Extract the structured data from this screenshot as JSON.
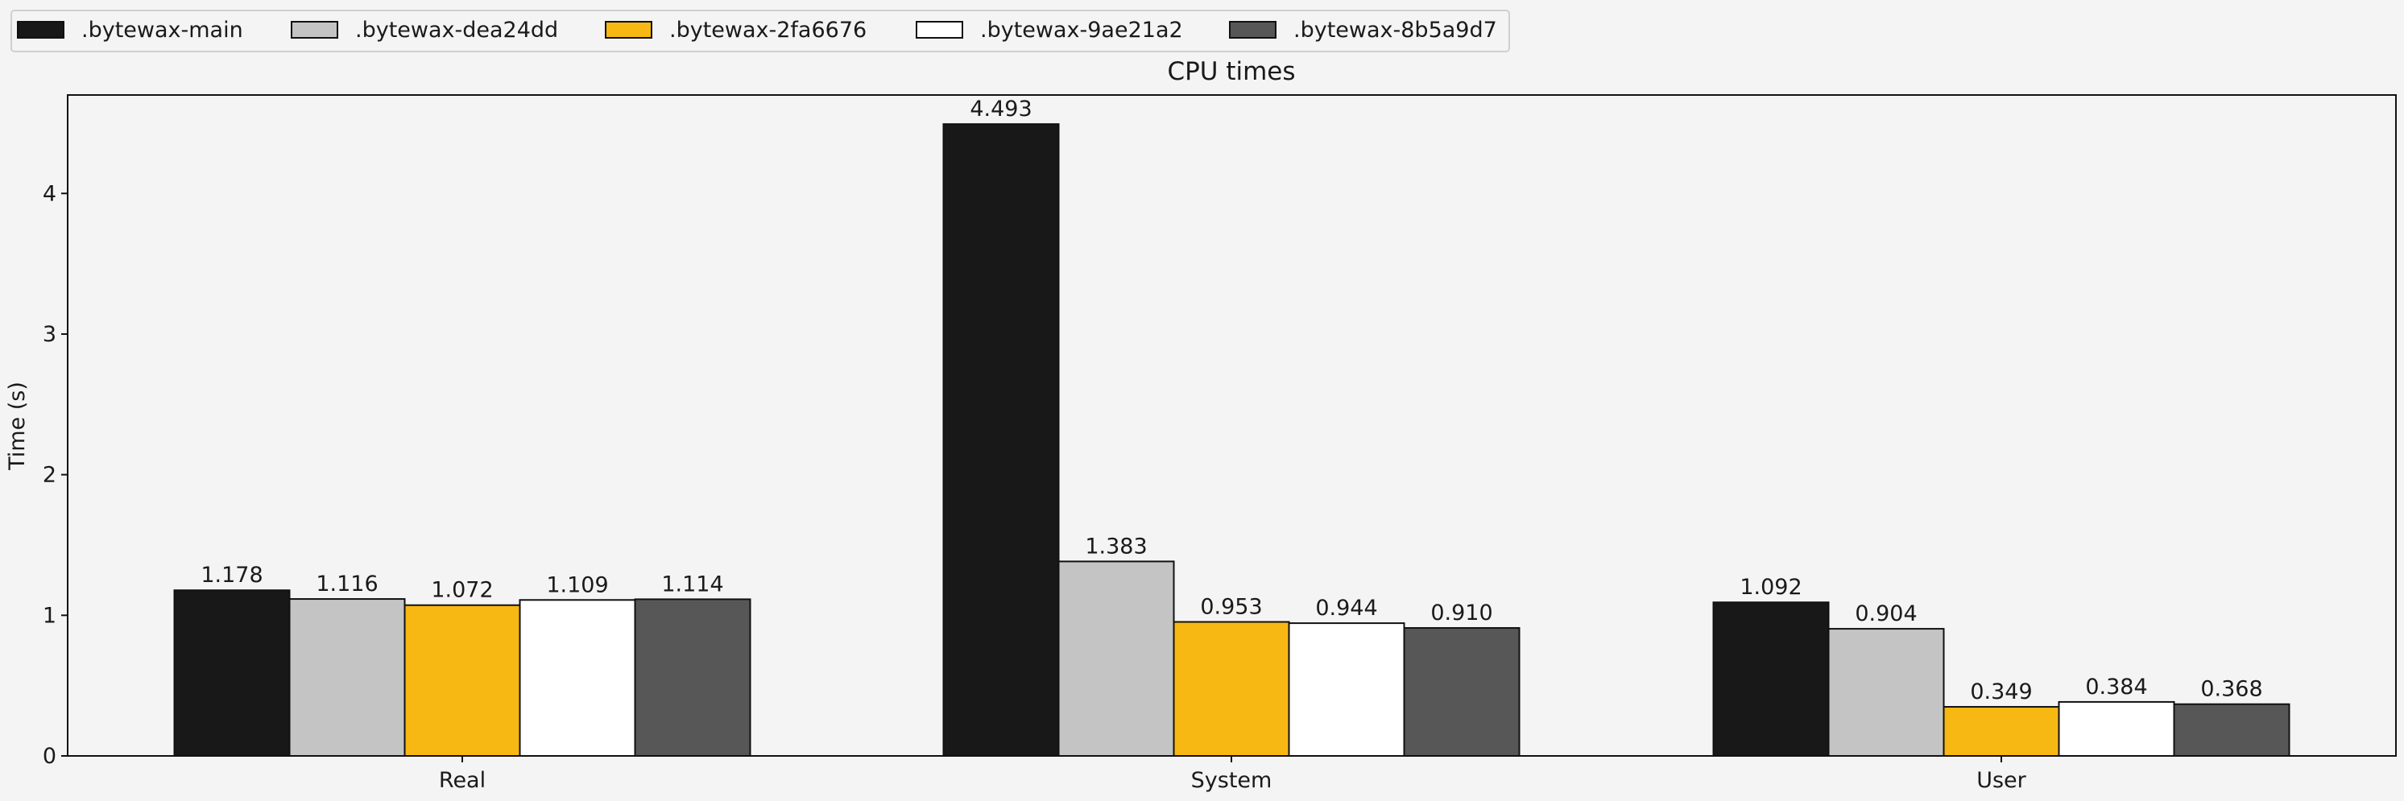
{
  "chart_data": {
    "type": "bar",
    "title": "CPU times",
    "xlabel": "",
    "ylabel": "Time (s)",
    "categories": [
      "Real",
      "System",
      "User"
    ],
    "ylim": [
      0,
      4.7
    ],
    "yticks": [
      0,
      1,
      2,
      3,
      4
    ],
    "grid": false,
    "legend_position": "top-left",
    "series": [
      {
        "name": ".bytewax-main",
        "color": "#181818",
        "values": [
          1.178,
          4.493,
          1.092
        ],
        "labels": [
          "1.178",
          "4.493",
          "1.092"
        ]
      },
      {
        "name": ".bytewax-dea24dd",
        "color": "#c4c4c4",
        "values": [
          1.116,
          1.383,
          0.904
        ],
        "labels": [
          "1.116",
          "1.383",
          "0.904"
        ]
      },
      {
        "name": ".bytewax-2fa6676",
        "color": "#f7b813",
        "values": [
          1.072,
          0.953,
          0.349
        ],
        "labels": [
          "1.072",
          "0.953",
          "0.349"
        ]
      },
      {
        "name": ".bytewax-9ae21a2",
        "color": "#ffffff",
        "values": [
          1.109,
          0.944,
          0.384
        ],
        "labels": [
          "1.109",
          "0.944",
          "0.384"
        ]
      },
      {
        "name": ".bytewax-8b5a9d7",
        "color": "#575757",
        "values": [
          1.114,
          0.91,
          0.368
        ],
        "labels": [
          "1.114",
          "0.910",
          "0.368"
        ]
      }
    ]
  }
}
